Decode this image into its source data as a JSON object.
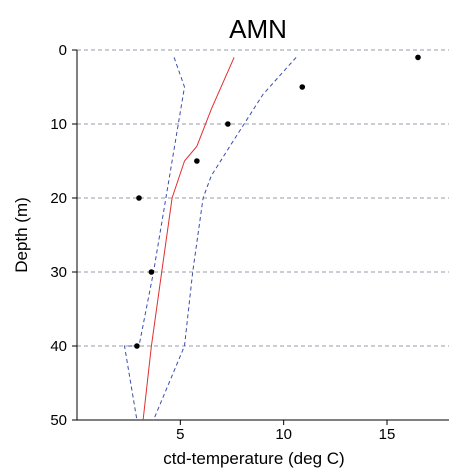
{
  "chart_data": {
    "type": "line",
    "title": "AMN",
    "xlabel": "ctd-temperature (deg C)",
    "ylabel": "Depth (m)",
    "xlim": [
      0,
      18
    ],
    "ylim": [
      50,
      0
    ],
    "y_axis_inverted": true,
    "x_ticks": [
      5,
      10,
      15
    ],
    "y_ticks": [
      0,
      10,
      20,
      30,
      40,
      50
    ],
    "grid": "horizontal dashed",
    "colors": {
      "mean_line": "#e03030",
      "bound_lines": "#3a4db0",
      "points": "#000000",
      "grid": "#9a9aa8"
    },
    "series": [
      {
        "style": "solid",
        "color": "#e03030",
        "points": [
          [
            7.6,
            1
          ],
          [
            6.5,
            8
          ],
          [
            5.8,
            13
          ],
          [
            5.2,
            15
          ],
          [
            4.6,
            20
          ],
          [
            4.1,
            30
          ],
          [
            3.6,
            40
          ],
          [
            3.2,
            50
          ]
        ]
      },
      {
        "style": "dashed",
        "color": "#3a4db0",
        "points": [
          [
            4.7,
            1
          ],
          [
            5.2,
            5
          ],
          [
            4.9,
            10
          ],
          [
            4.3,
            20
          ],
          [
            3.7,
            30
          ],
          [
            3.0,
            40
          ],
          [
            2.3,
            40
          ],
          [
            2.9,
            50
          ]
        ]
      },
      {
        "style": "dashed",
        "color": "#3a4db0",
        "points": [
          [
            10.6,
            1
          ],
          [
            9.0,
            6
          ],
          [
            7.4,
            13
          ],
          [
            6.5,
            17
          ],
          [
            6.1,
            20
          ],
          [
            5.6,
            30
          ],
          [
            5.2,
            40
          ],
          [
            3.7,
            50
          ]
        ]
      },
      {
        "style": "scatter",
        "color": "#000000",
        "points": [
          [
            16.5,
            1
          ],
          [
            10.9,
            5
          ],
          [
            7.3,
            10
          ],
          [
            5.8,
            15
          ],
          [
            3.0,
            20
          ],
          [
            3.6,
            30
          ],
          [
            2.9,
            40
          ]
        ]
      }
    ]
  }
}
